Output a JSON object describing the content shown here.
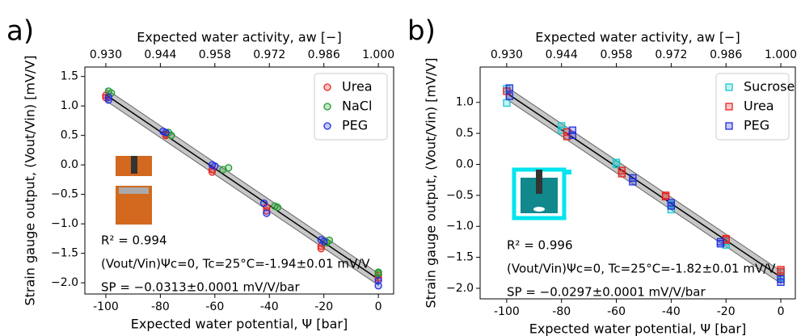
{
  "chart_data": [
    {
      "type": "scatter",
      "panel_label": "a)",
      "xlabel": "Expected water potential, Ψ [bar]",
      "x2label": "Expected water activity, aw [−]",
      "ylabel": "Strain gauge output, (Vout/Vin) [mV/V]",
      "xlim": [
        -107.7,
        5.6
      ],
      "xticks": [
        -100,
        -80,
        -60,
        -40,
        -20,
        0
      ],
      "x2lim": [
        0.92461,
        1.00392
      ],
      "x2ticks": [
        {
          "value": 0.93,
          "label": "0.930"
        },
        {
          "value": 0.944,
          "label": "0.944"
        },
        {
          "value": 0.958,
          "label": "0.958"
        },
        {
          "value": 0.972,
          "label": "0.972"
        },
        {
          "value": 0.986,
          "label": "0.986"
        },
        {
          "value": 1.0,
          "label": "1.000"
        }
      ],
      "ylim": [
        -2.19,
        1.66
      ],
      "yticks": [
        {
          "value": -2.0,
          "label": "−2.0"
        },
        {
          "value": -1.5,
          "label": "−1.5"
        },
        {
          "value": -1.0,
          "label": "−1.0"
        },
        {
          "value": -0.5,
          "label": "−0.5"
        },
        {
          "value": 0.0,
          "label": "0.0"
        },
        {
          "value": 0.5,
          "label": "0.5"
        },
        {
          "value": 1.0,
          "label": "1.0"
        },
        {
          "value": 1.5,
          "label": "1.5"
        }
      ],
      "marker": "circle",
      "legend": "upper right",
      "grid": false,
      "series": [
        {
          "name": "Urea",
          "color": "#e8231f",
          "x": [
            -100,
            -100,
            -78,
            -78,
            -61,
            -61,
            -41,
            -41,
            -21,
            -21,
            0,
            0
          ],
          "values": [
            1.18,
            1.14,
            0.5,
            0.52,
            -0.12,
            -0.08,
            -0.72,
            -0.78,
            -1.38,
            -1.42,
            -1.87,
            -1.92
          ]
        },
        {
          "name": "NaCl",
          "color": "#1e9a2c",
          "x": [
            -99,
            -98,
            -77,
            -76,
            -57,
            -55,
            -38,
            -37,
            -19,
            -18,
            0,
            0
          ],
          "values": [
            1.25,
            1.22,
            0.55,
            0.5,
            -0.08,
            -0.05,
            -0.7,
            -0.72,
            -1.32,
            -1.28,
            -1.82,
            -1.84
          ]
        },
        {
          "name": "PEG",
          "color": "#1f2ee0",
          "x": [
            -99,
            -99,
            -79,
            -78,
            -61,
            -60,
            -42,
            -41,
            -21,
            -20,
            0,
            0
          ],
          "values": [
            1.1,
            1.15,
            0.57,
            0.55,
            0.0,
            -0.02,
            -0.65,
            -0.82,
            -1.27,
            -1.3,
            -1.96,
            -2.05
          ]
        }
      ],
      "fit": {
        "x": [
          -100,
          0
        ],
        "values": [
          1.19,
          -1.94
        ],
        "upper": [
          1.29,
          -1.84
        ],
        "lower": [
          1.09,
          -2.04
        ]
      },
      "annotations": [
        "R² = 0.994",
        "(Vout/Vin)Ψc=0, Tc=25°C=-1.94±0.01 mV/V",
        "SP = −0.0313±0.0001 mV/V/bar"
      ]
    },
    {
      "type": "scatter",
      "panel_label": "b)",
      "xlabel": "Expected water potential, Ψ [bar]",
      "x2label": "Expected water activity, aw [−]",
      "ylabel": "Strain gauge output, (Vout/Vin) [mV/V]",
      "xlim": [
        -109.7,
        5.3
      ],
      "xticks": [
        -100,
        -80,
        -60,
        -40,
        -20,
        0
      ],
      "x2lim": [
        0.92321,
        1.00371
      ],
      "x2ticks": [
        {
          "value": 0.93,
          "label": "0.930"
        },
        {
          "value": 0.944,
          "label": "0.944"
        },
        {
          "value": 0.958,
          "label": "0.958"
        },
        {
          "value": 0.972,
          "label": "0.972"
        },
        {
          "value": 0.986,
          "label": "0.986"
        },
        {
          "value": 1.0,
          "label": "1.000"
        }
      ],
      "ylim": [
        -2.17,
        1.57
      ],
      "yticks": [
        {
          "value": -2.0,
          "label": "−2.0"
        },
        {
          "value": -1.5,
          "label": "−1.5"
        },
        {
          "value": -1.0,
          "label": "−1.0"
        },
        {
          "value": -0.5,
          "label": "−0.5"
        },
        {
          "value": 0.0,
          "label": "0.0"
        },
        {
          "value": 0.5,
          "label": "0.5"
        },
        {
          "value": 1.0,
          "label": "1.0"
        }
      ],
      "marker": "square",
      "legend": "upper right",
      "grid": false,
      "series": [
        {
          "name": "Sucrose",
          "color": "#17c9cf",
          "x": [
            -100,
            -100,
            -80,
            -80,
            -60,
            -60,
            -40,
            -40,
            -20,
            -20,
            0,
            0
          ],
          "values": [
            1.22,
            0.99,
            0.62,
            0.55,
            0.03,
            0.0,
            -0.65,
            -0.73,
            -1.24,
            -1.3,
            -1.75,
            -1.82
          ]
        },
        {
          "name": "Urea",
          "color": "#e8231f",
          "x": [
            -100,
            -78,
            -78,
            -58,
            -58,
            -42,
            -42,
            -20,
            -20,
            0,
            0
          ],
          "values": [
            1.18,
            0.52,
            0.45,
            -0.1,
            -0.15,
            -0.5,
            -0.52,
            -1.2,
            -1.22,
            -1.7,
            -1.73
          ]
        },
        {
          "name": "PEG",
          "color": "#1f2ee0",
          "x": [
            -99,
            -99,
            -76,
            -76,
            -54,
            -54,
            -40,
            -40,
            -22,
            -22,
            0,
            0
          ],
          "values": [
            1.23,
            1.1,
            0.55,
            0.47,
            -0.22,
            -0.28,
            -0.62,
            -0.67,
            -1.25,
            -1.28,
            -1.85,
            -1.9
          ]
        }
      ],
      "fit": {
        "x": [
          -100,
          0
        ],
        "values": [
          1.15,
          -1.82
        ],
        "upper": [
          1.25,
          -1.72
        ],
        "lower": [
          1.05,
          -1.92
        ]
      },
      "annotations": [
        "R² = 0.996",
        "(Vout/Vin)Ψc=0, Tc=25°C=-1.82±0.01 mV/V",
        "SP = −0.0297±0.0001 mV/V/bar"
      ]
    }
  ]
}
